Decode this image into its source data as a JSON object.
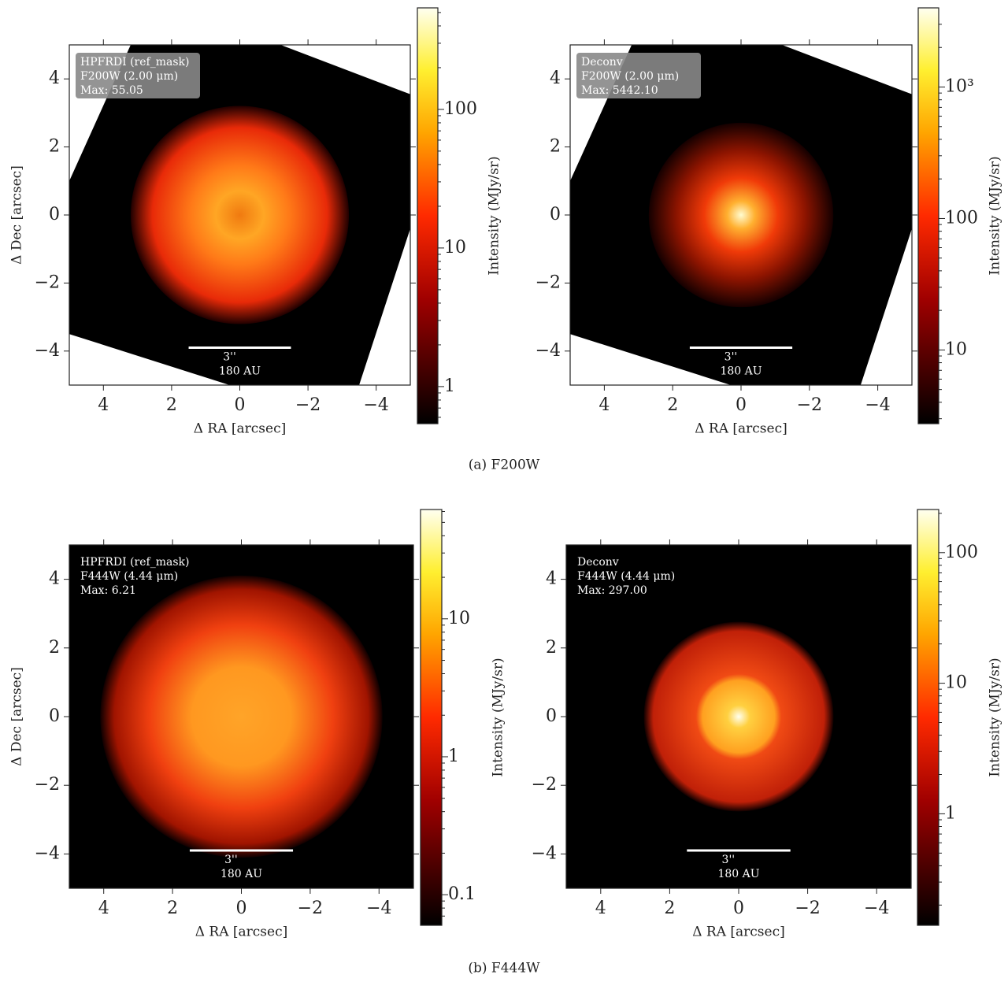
{
  "chart_data": [
    {
      "type": "image",
      "xlabel": "Δ RA [arcsec]",
      "ylabel": "Δ Dec [arcsec]",
      "xlim": [
        5,
        -5
      ],
      "ylim": [
        -5,
        5
      ],
      "xticks": [
        4,
        2,
        0,
        {
          "value": -2,
          "label": "−2"
        },
        {
          "value": -4,
          "label": "−4"
        }
      ],
      "yticks": [
        {
          "value": -4,
          "label": "−4"
        },
        {
          "value": -2,
          "label": "−2"
        },
        0,
        2,
        4
      ],
      "annotation": [
        "HPFRDI (ref_mask)",
        "F200W (2.00 μm)",
        "Max: 55.05"
      ],
      "label_box": true,
      "masked_corners": true,
      "scalebar": [
        "3''",
        "180 AU"
      ],
      "colorbar": {
        "label": "Intensity (MJy/sr)",
        "log": true,
        "clim": [
          0.54,
          540
        ],
        "ticks": [
          1,
          10,
          100
        ]
      }
    },
    {
      "type": "image",
      "xlabel": "Δ RA [arcsec]",
      "ylabel": null,
      "xlim": [
        5,
        -5
      ],
      "ylim": [
        -5,
        5
      ],
      "xticks": [
        4,
        2,
        0,
        {
          "value": -2,
          "label": "−2"
        },
        {
          "value": -4,
          "label": "−4"
        }
      ],
      "yticks": [
        {
          "value": -4,
          "label": "−4"
        },
        {
          "value": -2,
          "label": "−2"
        },
        0,
        2,
        4
      ],
      "annotation": [
        "Deconv",
        "F200W (2.00 μm)",
        "Max: 5442.10"
      ],
      "label_box": true,
      "masked_corners": true,
      "scalebar": [
        "3''",
        "180 AU"
      ],
      "colorbar": {
        "label": "Intensity (MJy/sr)",
        "log": true,
        "clim": [
          2.75,
          4000
        ],
        "ticks": [
          10,
          100,
          {
            "value": 1000,
            "label": "10³"
          }
        ]
      }
    },
    {
      "type": "image",
      "xlabel": "Δ RA [arcsec]",
      "ylabel": "Δ Dec [arcsec]",
      "xlim": [
        5,
        -5
      ],
      "ylim": [
        -5,
        5
      ],
      "xticks": [
        4,
        2,
        0,
        {
          "value": -2,
          "label": "−2"
        },
        {
          "value": -4,
          "label": "−4"
        }
      ],
      "yticks": [
        {
          "value": -4,
          "label": "−4"
        },
        {
          "value": -2,
          "label": "−2"
        },
        0,
        2,
        4
      ],
      "annotation": [
        "HPFRDI (ref_mask)",
        "F444W (4.44 μm)",
        "Max: 6.21"
      ],
      "label_box": false,
      "masked_corners": false,
      "scalebar": [
        "3''",
        "180 AU"
      ],
      "colorbar": {
        "label": "Intensity (MJy/sr)",
        "log": true,
        "clim": [
          0.06,
          62
        ],
        "ticks": [
          0.1,
          1,
          10
        ]
      }
    },
    {
      "type": "image",
      "xlabel": "Δ RA [arcsec]",
      "ylabel": null,
      "xlim": [
        5,
        -5
      ],
      "ylim": [
        -5,
        5
      ],
      "xticks": [
        4,
        2,
        0,
        {
          "value": -2,
          "label": "−2"
        },
        {
          "value": -4,
          "label": "−4"
        }
      ],
      "yticks": [
        {
          "value": -4,
          "label": "−4"
        },
        {
          "value": -2,
          "label": "−2"
        },
        0,
        2,
        4
      ],
      "annotation": [
        "Deconv",
        "F444W (4.44 μm)",
        "Max: 297.00"
      ],
      "label_box": false,
      "masked_corners": false,
      "scalebar": [
        "3''",
        "180 AU"
      ],
      "colorbar": {
        "label": "Intensity (MJy/sr)",
        "log": true,
        "clim": [
          0.14,
          214
        ],
        "ticks": [
          1,
          10,
          100
        ]
      }
    }
  ],
  "captions": [
    "(a) F200W",
    "(b) F444W"
  ]
}
